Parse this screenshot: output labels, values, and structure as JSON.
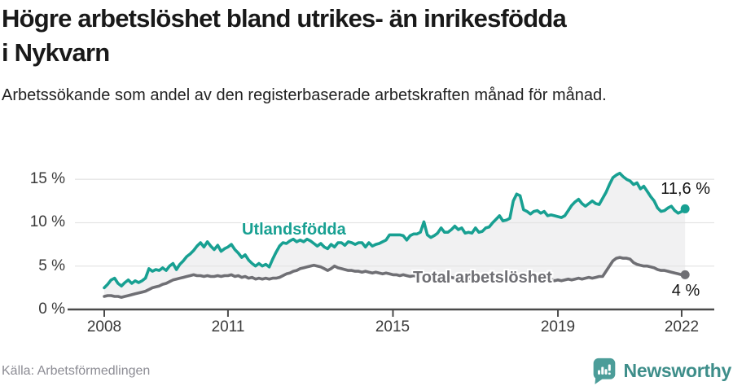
{
  "chart_data": {
    "type": "line",
    "title": "Högre arbetslöshet bland utrikes- än inrikesfödda i Nykvarn",
    "subtitle": "Arbetssökande som andel av den registerbaserade arbetskraften månad för månad.",
    "source": "Källa: Arbetsförmedlingen",
    "brand": "Newsworthy",
    "brand_icon": "newsworthy-speech-bubble-bar-chart",
    "unit": "%",
    "x_frequency": "monthly",
    "x_start": "2008-01",
    "x_end": "2022-02",
    "grid": "horizontal",
    "legend_position": "inline-labels-on-lines",
    "ylim": [
      0,
      16.6
    ],
    "colors": {
      "foreign_born": "#18A092",
      "total": "#6F6F74",
      "band_fill": "#F1F1F2",
      "gridline": "#E4E4E4",
      "axis": "#4A4A4A",
      "brand_teal": "#3E8E8A",
      "logo_mark": "#4C9D99"
    },
    "xticks": [
      {
        "year": 2008,
        "label": "2008"
      },
      {
        "year": 2011,
        "label": "2011"
      },
      {
        "year": 2015,
        "label": "2015"
      },
      {
        "year": 2019,
        "label": "2019"
      },
      {
        "year": 2022,
        "label": "2022"
      }
    ],
    "yticks": [
      {
        "value": 0,
        "label": "0 %"
      },
      {
        "value": 5,
        "label": "5 %"
      },
      {
        "value": 10,
        "label": "10 %"
      },
      {
        "value": 15,
        "label": "15 %"
      }
    ],
    "series": [
      {
        "name": "Utlandsfödda",
        "color": "#18A092",
        "end_value": 11.6,
        "end_label": "11,6 %",
        "values": [
          2.5,
          2.9,
          3.4,
          3.6,
          3.0,
          2.7,
          3.1,
          3.4,
          3.0,
          3.3,
          3.1,
          3.3,
          3.6,
          4.7,
          4.4,
          4.6,
          4.5,
          4.8,
          4.5,
          5.0,
          5.3,
          4.6,
          5.2,
          5.6,
          6.1,
          6.4,
          6.8,
          7.3,
          7.7,
          7.2,
          7.8,
          7.3,
          6.9,
          7.4,
          6.7,
          7.0,
          7.2,
          7.5,
          6.9,
          6.5,
          6.0,
          6.3,
          5.7,
          5.3,
          5.0,
          5.3,
          5.0,
          5.2,
          4.9,
          5.8,
          6.6,
          7.3,
          7.7,
          7.6,
          7.9,
          8.1,
          7.8,
          8.0,
          7.8,
          8.1,
          7.9,
          7.6,
          7.3,
          7.6,
          7.2,
          7.0,
          7.5,
          7.2,
          7.7,
          7.7,
          7.4,
          7.8,
          7.7,
          7.5,
          7.7,
          7.7,
          7.2,
          7.7,
          7.3,
          7.5,
          7.6,
          7.8,
          8.0,
          8.6,
          8.6,
          8.6,
          8.6,
          8.5,
          8.0,
          8.5,
          8.7,
          8.7,
          8.9,
          10.1,
          8.6,
          8.3,
          8.5,
          8.8,
          9.4,
          8.9,
          8.9,
          9.2,
          9.6,
          9.2,
          9.4,
          8.8,
          8.9,
          8.8,
          9.4,
          8.9,
          9.0,
          9.4,
          9.5,
          10.0,
          10.4,
          10.8,
          10.2,
          10.3,
          10.5,
          12.5,
          13.3,
          13.1,
          11.5,
          11.3,
          11.0,
          11.3,
          11.4,
          11.1,
          11.3,
          10.8,
          10.9,
          10.8,
          10.7,
          10.6,
          10.8,
          11.4,
          12.0,
          12.4,
          12.7,
          12.2,
          11.9,
          12.2,
          12.5,
          12.2,
          12.1,
          12.8,
          13.5,
          14.4,
          15.2,
          15.5,
          15.7,
          15.3,
          15.0,
          14.8,
          14.4,
          14.6,
          13.9,
          14.2,
          13.6,
          13.0,
          12.5,
          11.7,
          11.3,
          11.4,
          11.7,
          11.9,
          11.4,
          11.1,
          11.3,
          11.6
        ]
      },
      {
        "name": "Total arbetslöshet",
        "color": "#6F6F74",
        "end_value": 4.0,
        "end_label": "4 %",
        "values": [
          1.5,
          1.6,
          1.6,
          1.5,
          1.5,
          1.4,
          1.5,
          1.6,
          1.7,
          1.8,
          1.9,
          2.0,
          2.1,
          2.3,
          2.5,
          2.6,
          2.7,
          2.9,
          3.0,
          3.2,
          3.4,
          3.5,
          3.6,
          3.7,
          3.8,
          3.9,
          4.0,
          3.9,
          3.9,
          3.8,
          3.9,
          3.8,
          3.8,
          3.9,
          3.8,
          3.9,
          3.9,
          4.0,
          3.8,
          3.9,
          3.7,
          3.8,
          3.6,
          3.7,
          3.5,
          3.6,
          3.5,
          3.6,
          3.5,
          3.6,
          3.6,
          3.7,
          3.9,
          4.1,
          4.2,
          4.4,
          4.5,
          4.7,
          4.8,
          4.9,
          5.0,
          5.1,
          5.0,
          4.9,
          4.7,
          4.5,
          4.7,
          5.0,
          4.8,
          4.7,
          4.6,
          4.5,
          4.5,
          4.4,
          4.4,
          4.3,
          4.4,
          4.3,
          4.2,
          4.3,
          4.2,
          4.1,
          4.2,
          4.1,
          4.0,
          4.0,
          3.9,
          4.0,
          3.9,
          3.8,
          3.9,
          3.8,
          3.9,
          3.8,
          3.9,
          3.8,
          3.8,
          3.7,
          3.8,
          3.7,
          3.6,
          3.7,
          3.6,
          3.7,
          3.6,
          3.5,
          3.6,
          3.5,
          3.6,
          3.5,
          3.4,
          3.5,
          3.4,
          3.5,
          3.4,
          3.5,
          3.6,
          3.5,
          3.4,
          3.5,
          3.4,
          3.5,
          3.4,
          3.3,
          3.4,
          3.3,
          3.4,
          3.3,
          3.4,
          3.3,
          3.4,
          3.3,
          3.4,
          3.3,
          3.4,
          3.5,
          3.4,
          3.5,
          3.6,
          3.5,
          3.6,
          3.7,
          3.6,
          3.7,
          3.8,
          3.8,
          4.4,
          5.0,
          5.6,
          5.9,
          6.0,
          5.9,
          5.9,
          5.8,
          5.4,
          5.2,
          5.1,
          5.0,
          5.0,
          4.9,
          4.8,
          4.6,
          4.5,
          4.5,
          4.4,
          4.3,
          4.2,
          4.1,
          4.0,
          4.0
        ]
      }
    ]
  }
}
